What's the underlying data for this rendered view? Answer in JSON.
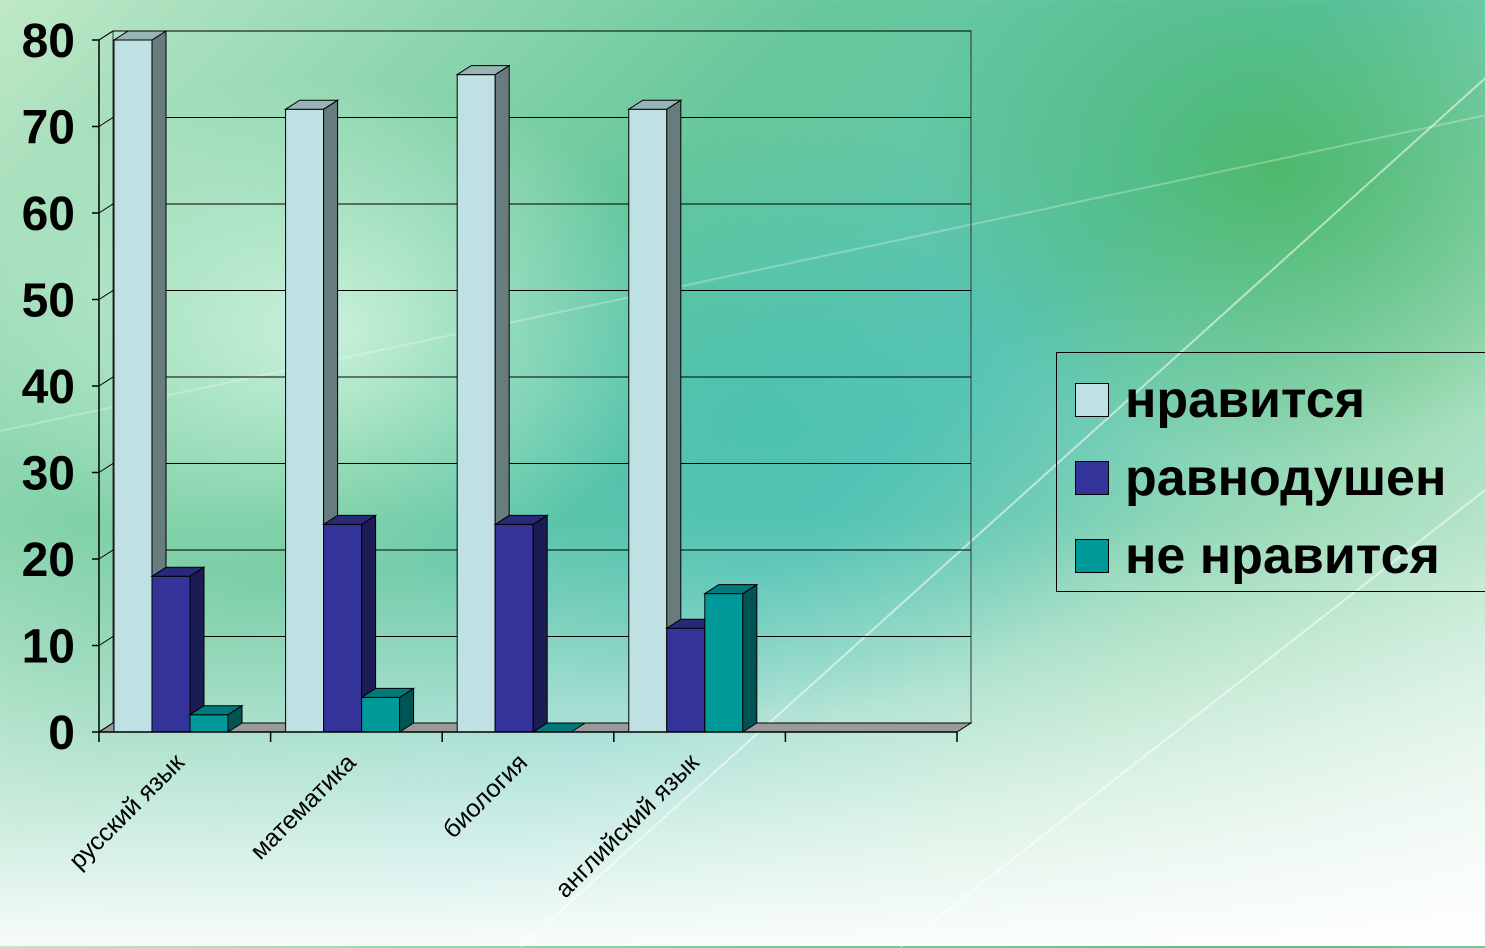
{
  "chart_data": {
    "type": "bar",
    "categories": [
      "русский язык",
      "математика",
      "биология",
      "английский язык",
      ""
    ],
    "series": [
      {
        "name": "нравится",
        "values": [
          80,
          72,
          76,
          72,
          null
        ],
        "color": "#bfe1e3"
      },
      {
        "name": "равнодушен",
        "values": [
          18,
          24,
          24,
          12,
          null
        ],
        "color": "#333399"
      },
      {
        "name": "не нравится",
        "values": [
          2,
          4,
          0,
          16,
          null
        ],
        "color": "#009999"
      }
    ],
    "ylim": [
      0,
      80
    ],
    "yticks": [
      "0",
      "10",
      "20",
      "30",
      "40",
      "50",
      "60",
      "70",
      "80"
    ],
    "grid": true,
    "legend_position": "right",
    "bar_style": "3d"
  }
}
